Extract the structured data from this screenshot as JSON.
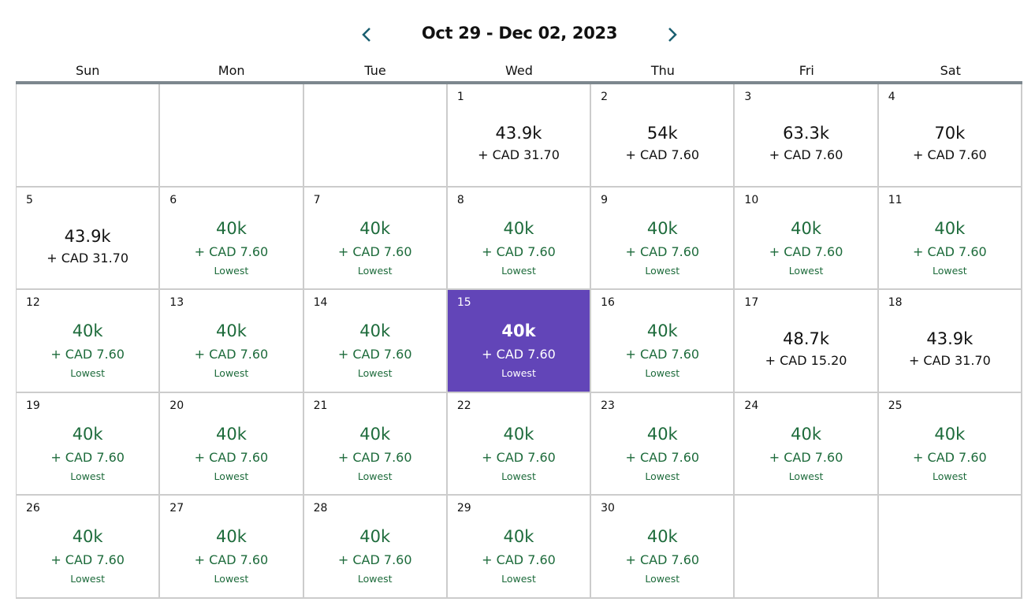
{
  "header": {
    "title": "Oct 29 - Dec 02, 2023",
    "prev_icon": "chevron-left-icon",
    "next_icon": "chevron-right-icon"
  },
  "colors": {
    "accent": "#1a5f70",
    "lowest": "#1d6b3b",
    "selected": "#6245b8"
  },
  "weekdays": [
    "Sun",
    "Mon",
    "Tue",
    "Wed",
    "Thu",
    "Fri",
    "Sat"
  ],
  "cells": [
    {},
    {},
    {},
    {
      "day": "1",
      "price": "43.9k",
      "fee": "+ CAD 31.70"
    },
    {
      "day": "2",
      "price": "54k",
      "fee": "+ CAD 7.60"
    },
    {
      "day": "3",
      "price": "63.3k",
      "fee": "+ CAD 7.60"
    },
    {
      "day": "4",
      "price": "70k",
      "fee": "+ CAD 7.60"
    },
    {
      "day": "5",
      "price": "43.9k",
      "fee": "+ CAD 31.70"
    },
    {
      "day": "6",
      "price": "40k",
      "fee": "+ CAD 7.60",
      "tag": "Lowest"
    },
    {
      "day": "7",
      "price": "40k",
      "fee": "+ CAD 7.60",
      "tag": "Lowest"
    },
    {
      "day": "8",
      "price": "40k",
      "fee": "+ CAD 7.60",
      "tag": "Lowest"
    },
    {
      "day": "9",
      "price": "40k",
      "fee": "+ CAD 7.60",
      "tag": "Lowest"
    },
    {
      "day": "10",
      "price": "40k",
      "fee": "+ CAD 7.60",
      "tag": "Lowest"
    },
    {
      "day": "11",
      "price": "40k",
      "fee": "+ CAD 7.60",
      "tag": "Lowest"
    },
    {
      "day": "12",
      "price": "40k",
      "fee": "+ CAD 7.60",
      "tag": "Lowest"
    },
    {
      "day": "13",
      "price": "40k",
      "fee": "+ CAD 7.60",
      "tag": "Lowest"
    },
    {
      "day": "14",
      "price": "40k",
      "fee": "+ CAD 7.60",
      "tag": "Lowest"
    },
    {
      "day": "15",
      "price": "40k",
      "fee": "+ CAD 7.60",
      "tag": "Lowest",
      "selected": true
    },
    {
      "day": "16",
      "price": "40k",
      "fee": "+ CAD 7.60",
      "tag": "Lowest"
    },
    {
      "day": "17",
      "price": "48.7k",
      "fee": "+ CAD 15.20"
    },
    {
      "day": "18",
      "price": "43.9k",
      "fee": "+ CAD 31.70"
    },
    {
      "day": "19",
      "price": "40k",
      "fee": "+ CAD 7.60",
      "tag": "Lowest"
    },
    {
      "day": "20",
      "price": "40k",
      "fee": "+ CAD 7.60",
      "tag": "Lowest"
    },
    {
      "day": "21",
      "price": "40k",
      "fee": "+ CAD 7.60",
      "tag": "Lowest"
    },
    {
      "day": "22",
      "price": "40k",
      "fee": "+ CAD 7.60",
      "tag": "Lowest"
    },
    {
      "day": "23",
      "price": "40k",
      "fee": "+ CAD 7.60",
      "tag": "Lowest"
    },
    {
      "day": "24",
      "price": "40k",
      "fee": "+ CAD 7.60",
      "tag": "Lowest"
    },
    {
      "day": "25",
      "price": "40k",
      "fee": "+ CAD 7.60",
      "tag": "Lowest"
    },
    {
      "day": "26",
      "price": "40k",
      "fee": "+ CAD 7.60",
      "tag": "Lowest"
    },
    {
      "day": "27",
      "price": "40k",
      "fee": "+ CAD 7.60",
      "tag": "Lowest"
    },
    {
      "day": "28",
      "price": "40k",
      "fee": "+ CAD 7.60",
      "tag": "Lowest"
    },
    {
      "day": "29",
      "price": "40k",
      "fee": "+ CAD 7.60",
      "tag": "Lowest"
    },
    {
      "day": "30",
      "price": "40k",
      "fee": "+ CAD 7.60",
      "tag": "Lowest"
    },
    {},
    {}
  ]
}
